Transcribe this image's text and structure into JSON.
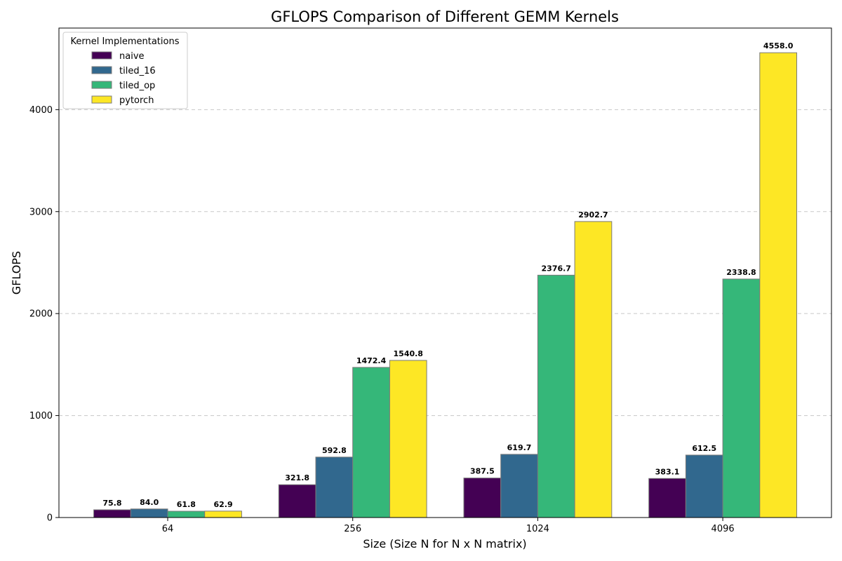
{
  "chart_data": {
    "type": "bar",
    "title": "GFLOPS Comparison of Different GEMM Kernels",
    "xlabel": "Size (Size N for N x N matrix)",
    "ylabel": "GFLOPS",
    "categories": [
      "64",
      "256",
      "1024",
      "4096"
    ],
    "ylim": [
      0,
      4800
    ],
    "yticks": [
      0,
      1000,
      2000,
      3000,
      4000
    ],
    "grid": "y-dashed",
    "legend": {
      "title": "Kernel Implementations",
      "placement": "top-left"
    },
    "series": [
      {
        "name": "naive",
        "color": "#440154",
        "values": [
          75.8,
          321.8,
          387.5,
          383.1
        ],
        "labels": [
          "75.8",
          "321.8",
          "387.5",
          "383.1"
        ]
      },
      {
        "name": "tiled_16",
        "color": "#31688e",
        "values": [
          84.0,
          592.8,
          619.7,
          612.5
        ],
        "labels": [
          "84.0",
          "592.8",
          "619.7",
          "612.5"
        ]
      },
      {
        "name": "tiled_op",
        "color": "#35b779",
        "values": [
          61.8,
          1472.4,
          2376.7,
          2338.8
        ],
        "labels": [
          "61.8",
          "1472.4",
          "2376.7",
          "2338.8"
        ]
      },
      {
        "name": "pytorch",
        "color": "#fde725",
        "values": [
          62.9,
          1540.8,
          2902.7,
          4558.0
        ],
        "labels": [
          "62.9",
          "1540.8",
          "2902.7",
          "4558.0"
        ]
      }
    ]
  }
}
